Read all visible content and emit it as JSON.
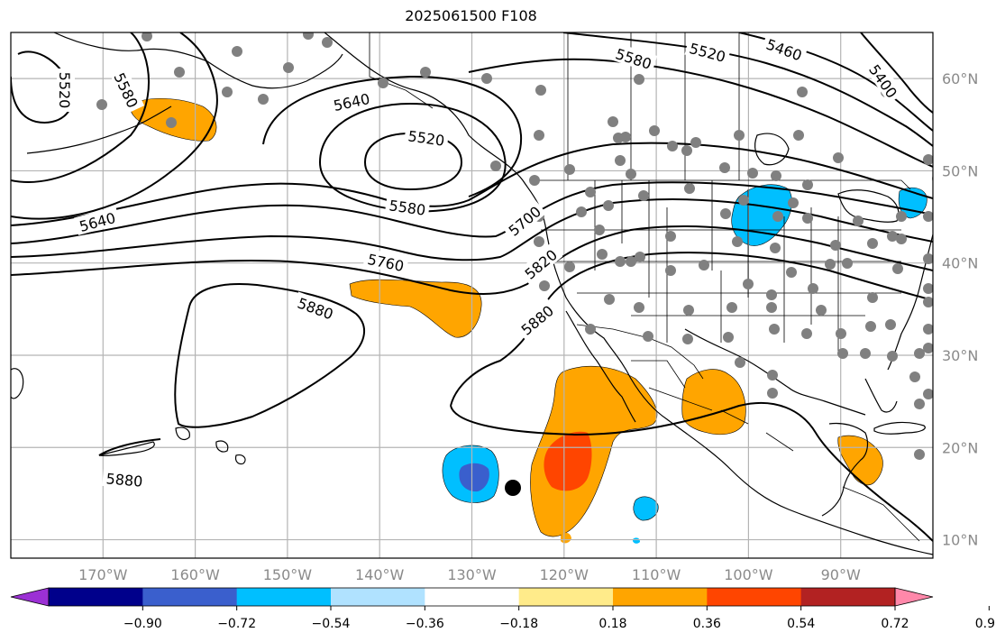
{
  "title": "2025061500 F108",
  "map": {
    "projection": "PlateCarree",
    "lon_range": [
      -180,
      -80
    ],
    "lat_range": [
      8,
      65
    ],
    "lon_ticks": [
      {
        "lon": -170,
        "label": "170°W"
      },
      {
        "lon": -160,
        "label": "160°W"
      },
      {
        "lon": -150,
        "label": "150°W"
      },
      {
        "lon": -140,
        "label": "140°W"
      },
      {
        "lon": -130,
        "label": "130°W"
      },
      {
        "lon": -120,
        "label": "120°W"
      },
      {
        "lon": -110,
        "label": "110°W"
      },
      {
        "lon": -100,
        "label": "100°W"
      },
      {
        "lon": -90,
        "label": "90°W"
      }
    ],
    "lat_ticks": [
      {
        "lat": 60,
        "label": "60°N"
      },
      {
        "lat": 50,
        "label": "50°N"
      },
      {
        "lat": 40,
        "label": "40°N"
      },
      {
        "lat": 30,
        "label": "30°N"
      },
      {
        "lat": 20,
        "label": "20°N"
      },
      {
        "lat": 10,
        "label": "10°N"
      }
    ],
    "grid": true,
    "contour_labels": [
      "5520",
      "5580",
      "5460",
      "5400",
      "5520",
      "5580",
      "5640",
      "5520",
      "5640",
      "5580",
      "5700",
      "5760",
      "5820",
      "5880",
      "5880",
      "5880"
    ],
    "tropical_cyclone_marker": {
      "lon": -126,
      "lat": 15.5
    },
    "colors": {
      "orange": "#ffa500",
      "red_orange": "#ff4500",
      "deep_sky_blue": "#00bfff",
      "royal_blue": "#3a5fcd",
      "station": "#808080"
    }
  },
  "colorbar": {
    "colors": [
      "#9b30d4",
      "#00008b",
      "#3a5fcd",
      "#00bfff",
      "#b0e2ff",
      "#ffffff",
      "#ffeb8a",
      "#ffa500",
      "#ff4500",
      "#b22222",
      "#ff88aa"
    ],
    "ticks": [
      "−0.90",
      "−0.72",
      "−0.54",
      "−0.36",
      "−0.18",
      "0.18",
      "0.36",
      "0.54",
      "0.72",
      "0.90"
    ]
  }
}
